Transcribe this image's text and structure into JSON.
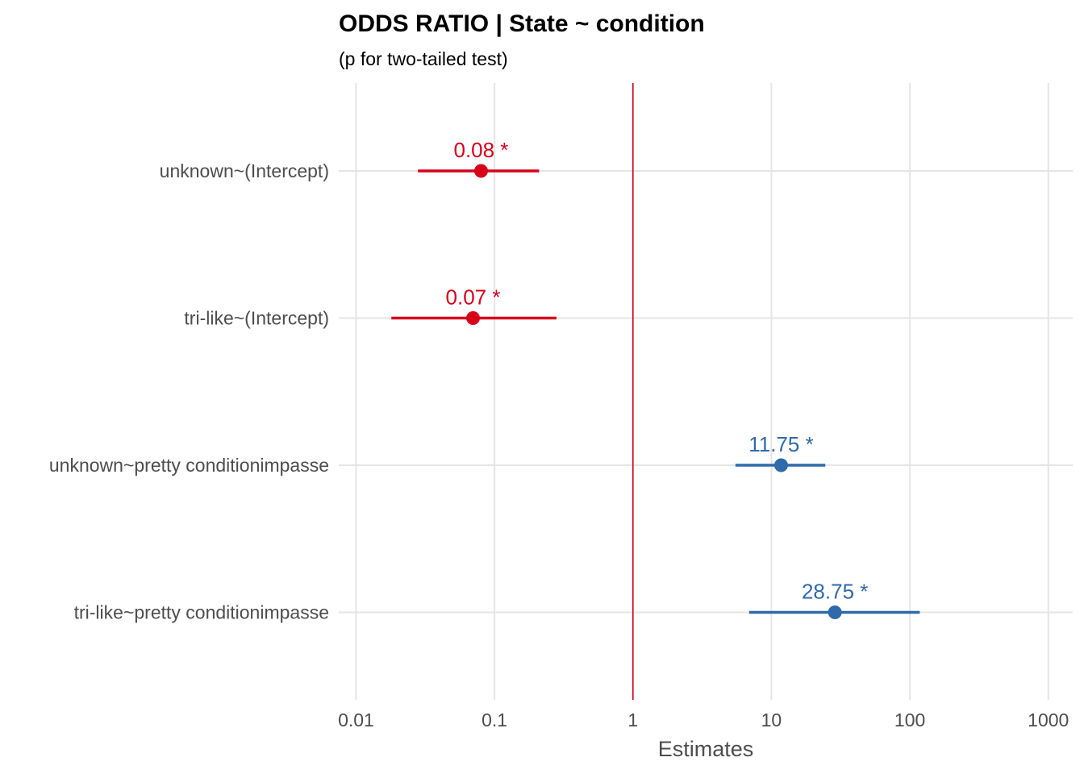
{
  "chart_data": {
    "type": "scatter",
    "title": "ODDS RATIO | State ~ condition",
    "subtitle": "(p for  two-tailed test)",
    "xlabel": "Estimates",
    "x_scale": "log10",
    "xlim": [
      0.0075,
      1500
    ],
    "x_ticks": [
      0.01,
      0.1,
      1,
      10,
      100,
      1000
    ],
    "x_tick_labels": [
      "0.01",
      "0.1",
      "1",
      "10",
      "100",
      "1000"
    ],
    "reference_line": 1,
    "grid": true,
    "legend": "none",
    "colors": {
      "negative": "#d7001b",
      "positive": "#2f6aab",
      "reference": "#d7001b",
      "grid": "#e5e5e5"
    },
    "terms": [
      {
        "label": "unknown~(Intercept)",
        "estimate": 0.08,
        "ci_low": 0.028,
        "ci_high": 0.21,
        "text": "0.08 *",
        "color": "negative"
      },
      {
        "label": "tri-like~(Intercept)",
        "estimate": 0.07,
        "ci_low": 0.018,
        "ci_high": 0.28,
        "text": "0.07 *",
        "color": "negative"
      },
      {
        "label": "unknown~pretty conditionimpasse",
        "estimate": 11.75,
        "ci_low": 5.5,
        "ci_high": 24.5,
        "text": "11.75 *",
        "color": "positive"
      },
      {
        "label": "tri-like~pretty conditionimpasse",
        "estimate": 28.75,
        "ci_low": 6.9,
        "ci_high": 118,
        "text": "28.75 *",
        "color": "positive"
      }
    ]
  }
}
